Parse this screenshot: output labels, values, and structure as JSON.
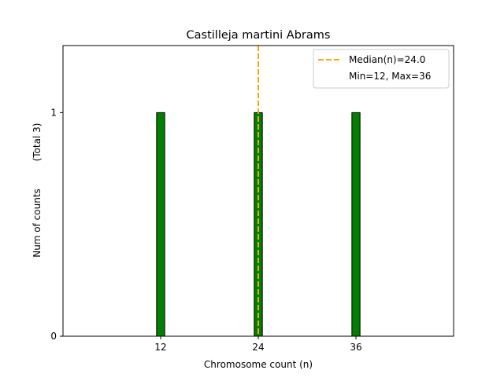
{
  "chart_data": {
    "type": "bar",
    "title": "Castilleja martini Abrams",
    "xlabel": "Chromosome count (n)",
    "ylabel": "Num of counts",
    "ylabel_secondary": "(Total 3)",
    "x": [
      12,
      24,
      36
    ],
    "values": [
      1,
      1,
      1
    ],
    "xticks": [
      "12",
      "24",
      "36"
    ],
    "yticks": [
      "0",
      "1"
    ],
    "xlim": [
      0,
      48
    ],
    "ylim": [
      0,
      1.3
    ],
    "bar_color": "#008000",
    "bar_edge_color": "#000000",
    "median": 24.0,
    "median_color": "#ffa500",
    "legend": {
      "position": "top-right",
      "entries": [
        "Median(n)=24.0",
        "Min=12, Max=36"
      ]
    },
    "grid": false
  }
}
